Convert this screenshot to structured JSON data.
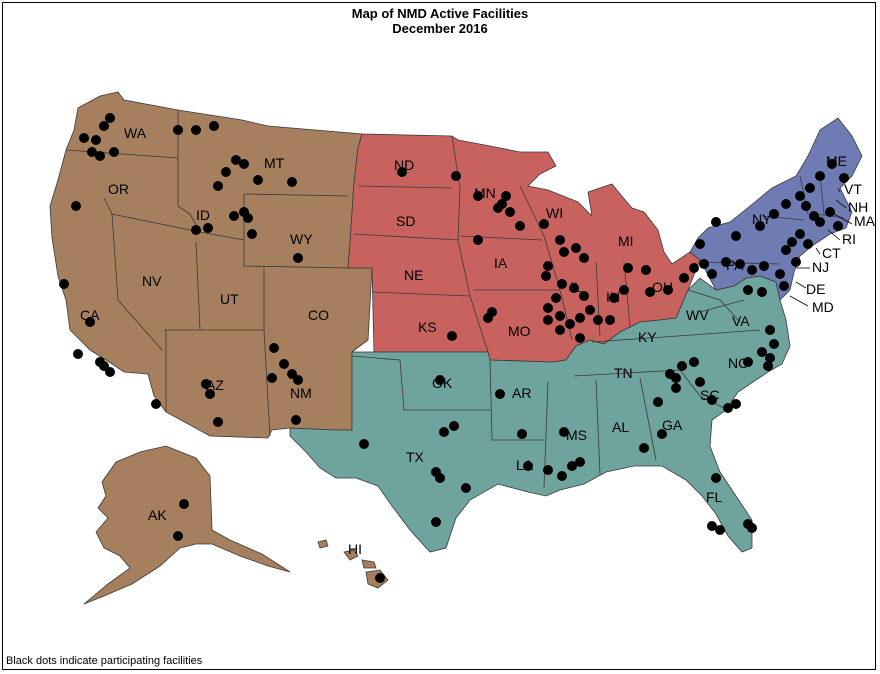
{
  "title": "Map of NMD Active Facilities",
  "subtitle": "December 2016",
  "footnote": "Black dots indicate participating facilities",
  "colors": {
    "west": "#a57f5e",
    "midwest": "#c8625f",
    "south": "#6fa39e",
    "northeast": "#6f7bb3",
    "dot": "#000000",
    "border": "#3a3a3a"
  },
  "regions": {
    "west": [
      "WA",
      "OR",
      "CA",
      "NV",
      "ID",
      "MT",
      "WY",
      "UT",
      "CO",
      "AZ",
      "NM",
      "AK",
      "HI"
    ],
    "midwest": [
      "ND",
      "SD",
      "NE",
      "KS",
      "MN",
      "IA",
      "MO",
      "WI",
      "IL",
      "MI",
      "IN",
      "OH"
    ],
    "south": [
      "TX",
      "OK",
      "AR",
      "LA",
      "MS",
      "AL",
      "TN",
      "KY",
      "GA",
      "FL",
      "SC",
      "NC",
      "VA",
      "WV",
      "MD",
      "DE"
    ],
    "northeast": [
      "ME",
      "VT",
      "NH",
      "MA",
      "RI",
      "CT",
      "NY",
      "NJ",
      "PA"
    ]
  },
  "state_labels": [
    "WA",
    "OR",
    "CA",
    "NV",
    "ID",
    "MT",
    "WY",
    "UT",
    "CO",
    "AZ",
    "NM",
    "ND",
    "SD",
    "NE",
    "KS",
    "MN",
    "IA",
    "MO",
    "WI",
    "IL",
    "MI",
    "IN",
    "OH",
    "TX",
    "OK",
    "AR",
    "LA",
    "MS",
    "AL",
    "TN",
    "KY",
    "GA",
    "FL",
    "SC",
    "NC",
    "VA",
    "WV",
    "ME",
    "VT",
    "NH",
    "MA",
    "RI",
    "CT",
    "NY",
    "NJ",
    "PA",
    "DE",
    "MD",
    "AK",
    "HI"
  ]
}
